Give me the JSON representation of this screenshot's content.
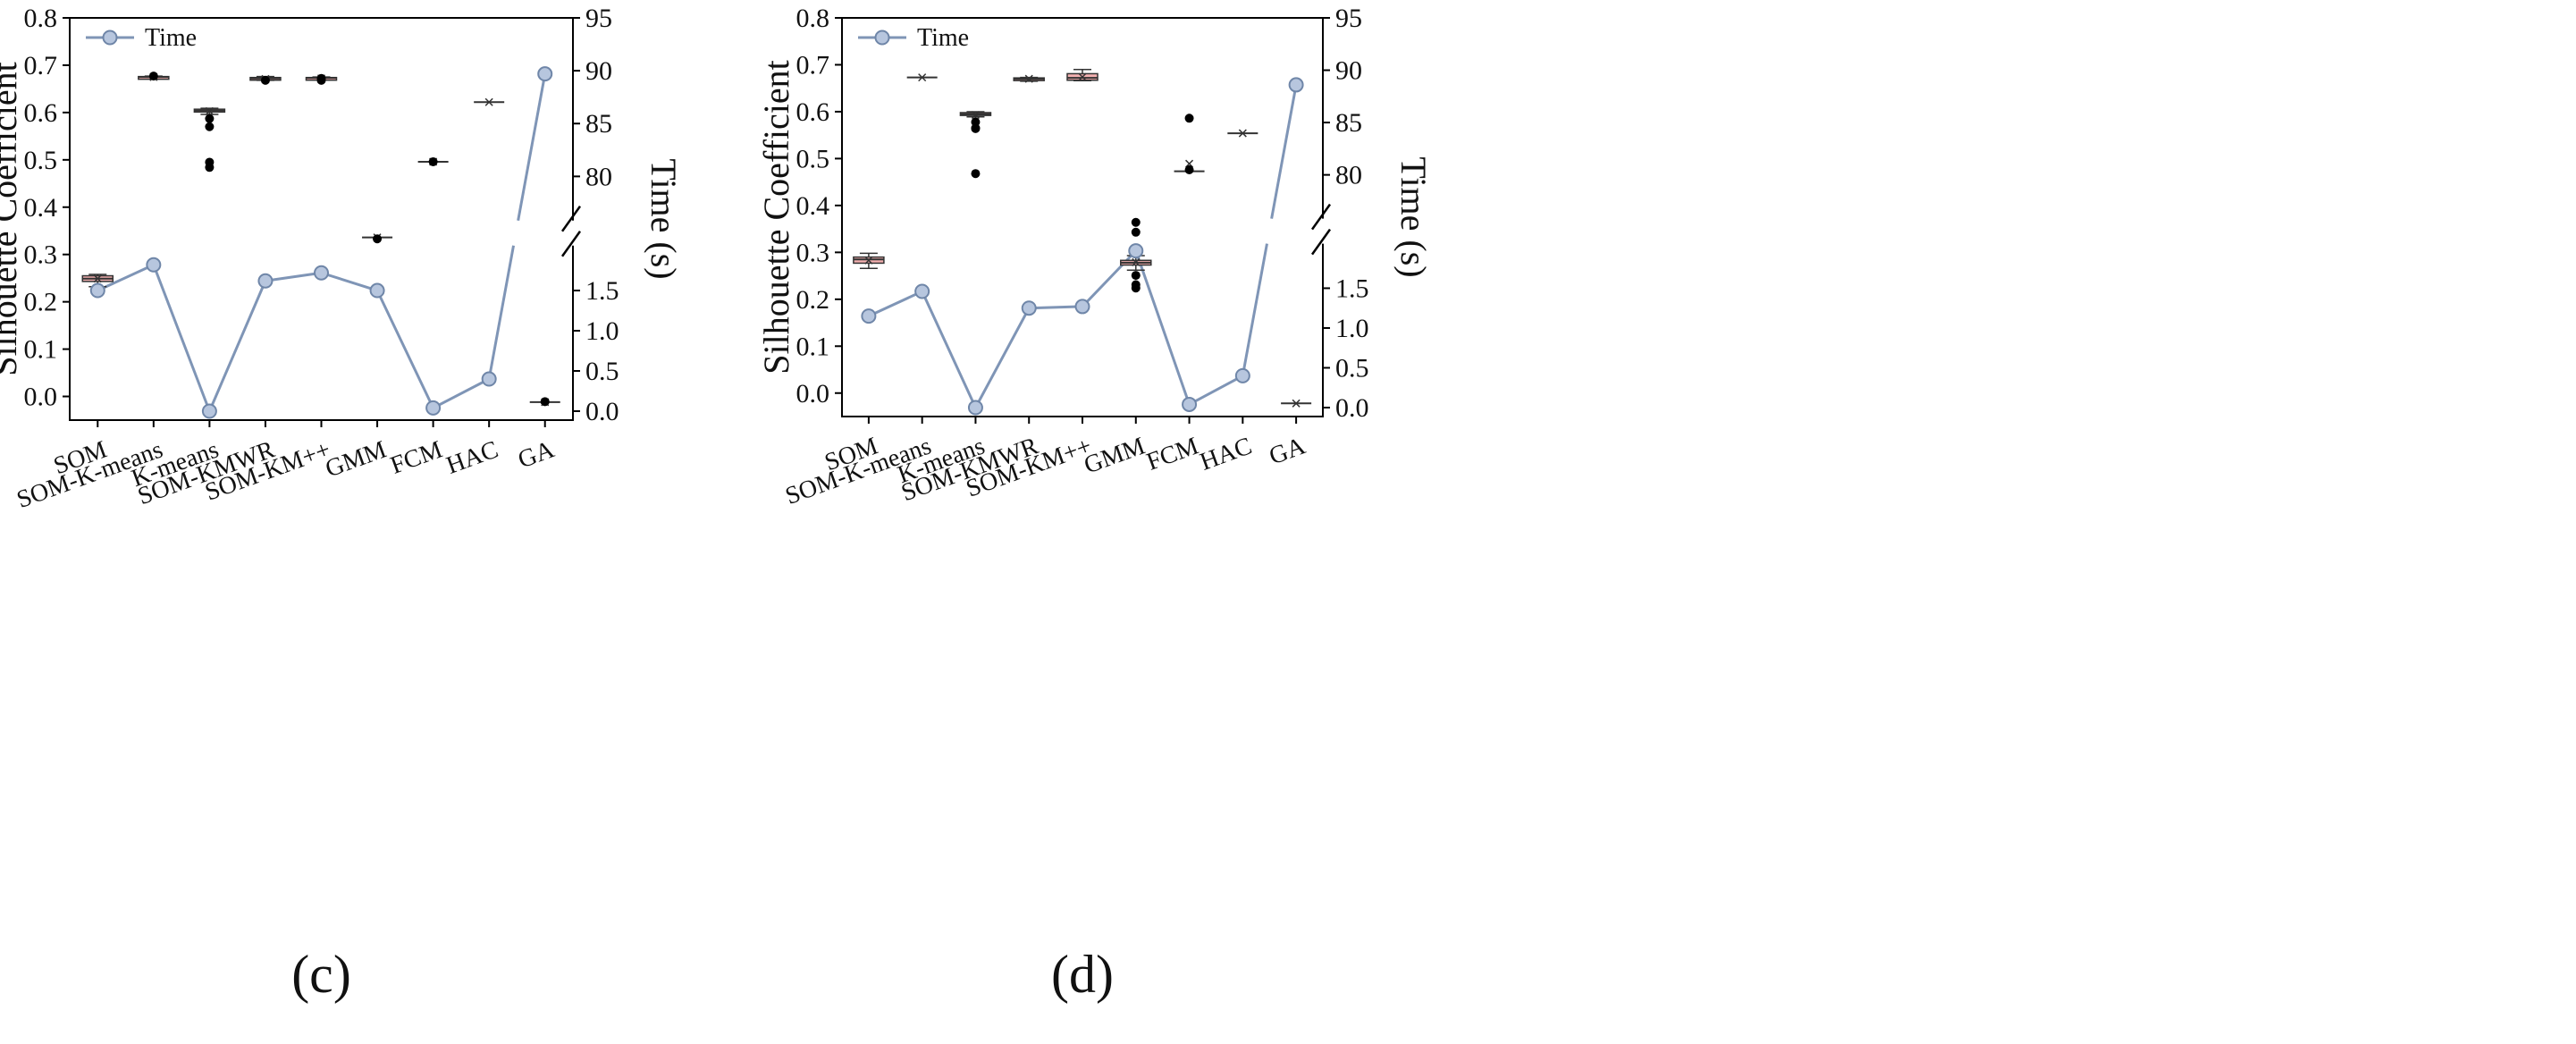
{
  "colors": {
    "time_line": "#7f95b6",
    "marker_fill": "#b7c6de",
    "marker_stroke": "#6f86a8",
    "box_fill": "#f3b0b0",
    "box_stroke": "#333333",
    "outlier": "#000000",
    "axis": "#000000"
  },
  "chart_data": [
    {
      "type": "box+line",
      "panel_label": "(c)",
      "ylabel": "Silhouette Coefficient",
      "y2label": "Time (s)",
      "ylim": [
        -0.05,
        0.8
      ],
      "yticks": [
        "0.8",
        "0.7",
        "0.6",
        "0.5",
        "0.4",
        "0.3",
        "0.2",
        "0.1",
        "0.0"
      ],
      "y2_lower_ticks": [
        "0.0",
        "0.5",
        "1.0",
        "1.5"
      ],
      "y2_upper_ticks": [
        "80",
        "85",
        "90",
        "95"
      ],
      "categories": [
        "SOM",
        "SOM-K-means",
        "K-means",
        "SOM-KMWR",
        "SOM-KM++",
        "GMM",
        "FCM",
        "HAC",
        "GA"
      ],
      "legend": "Time",
      "boxes": [
        {
          "q1": 0.243,
          "median": 0.249,
          "q3": 0.255,
          "whisker_low": 0.232,
          "whisker_high": 0.258,
          "mean": 0.249,
          "outliers": []
        },
        {
          "q1": 0.674,
          "median": 0.675,
          "q3": 0.676,
          "whisker_low": 0.674,
          "whisker_high": 0.677,
          "mean": 0.675,
          "outliers": [
            0.677
          ]
        },
        {
          "q1": 0.601,
          "median": 0.604,
          "q3": 0.607,
          "whisker_low": 0.596,
          "whisker_high": 0.609,
          "mean": 0.603,
          "outliers": [
            0.587,
            0.57,
            0.495,
            0.484
          ]
        },
        {
          "q1": 0.67,
          "median": 0.672,
          "q3": 0.674,
          "whisker_low": 0.668,
          "whisker_high": 0.676,
          "mean": 0.671,
          "outliers": [
            0.668
          ]
        },
        {
          "q1": 0.671,
          "median": 0.673,
          "q3": 0.674,
          "whisker_low": 0.669,
          "whisker_high": 0.675,
          "mean": 0.672,
          "outliers": [
            0.668,
            0.672
          ]
        },
        {
          "q1": 0.336,
          "median": 0.336,
          "q3": 0.336,
          "whisker_low": 0.336,
          "whisker_high": 0.336,
          "mean": 0.336,
          "outliers": [
            0.333
          ]
        },
        {
          "q1": 0.496,
          "median": 0.496,
          "q3": 0.496,
          "whisker_low": 0.496,
          "whisker_high": 0.496,
          "mean": 0.496,
          "outliers": [
            0.496
          ]
        },
        {
          "q1": 0.622,
          "median": 0.622,
          "q3": 0.622,
          "whisker_low": 0.622,
          "whisker_high": 0.622,
          "mean": 0.622,
          "outliers": []
        },
        {
          "q1": -0.012,
          "median": -0.012,
          "q3": -0.012,
          "whisker_low": -0.012,
          "whisker_high": -0.012,
          "mean": -0.012,
          "outliers": [
            -0.011
          ]
        }
      ],
      "time": [
        1.5,
        1.82,
        0.0,
        1.62,
        1.72,
        1.5,
        0.04,
        0.4,
        89.7
      ]
    },
    {
      "type": "box+line",
      "panel_label": "(d)",
      "ylabel": "Silhouette Coefficient",
      "y2label": "Time (s)",
      "ylim": [
        -0.05,
        0.8
      ],
      "yticks": [
        "0.8",
        "0.7",
        "0.6",
        "0.5",
        "0.4",
        "0.3",
        "0.2",
        "0.1",
        "0.0"
      ],
      "y2_lower_ticks": [
        "0.0",
        "0.5",
        "1.0",
        "1.5"
      ],
      "y2_upper_ticks": [
        "80",
        "85",
        "90",
        "95"
      ],
      "categories": [
        "SOM",
        "SOM-K-means",
        "K-means",
        "SOM-KMWR",
        "SOM-KM++",
        "GMM",
        "FCM",
        "HAC",
        "GA"
      ],
      "legend": "Time",
      "boxes": [
        {
          "q1": 0.277,
          "median": 0.285,
          "q3": 0.29,
          "whisker_low": 0.266,
          "whisker_high": 0.298,
          "mean": 0.283,
          "outliers": []
        },
        {
          "q1": 0.673,
          "median": 0.673,
          "q3": 0.673,
          "whisker_low": 0.673,
          "whisker_high": 0.673,
          "mean": 0.673,
          "outliers": []
        },
        {
          "q1": 0.592,
          "median": 0.595,
          "q3": 0.598,
          "whisker_low": 0.589,
          "whisker_high": 0.6,
          "mean": 0.593,
          "outliers": [
            0.578,
            0.565,
            0.564,
            0.468
          ]
        },
        {
          "q1": 0.668,
          "median": 0.67,
          "q3": 0.672,
          "whisker_low": 0.665,
          "whisker_high": 0.673,
          "mean": 0.67,
          "outliers": []
        },
        {
          "q1": 0.667,
          "median": 0.672,
          "q3": 0.681,
          "whisker_low": 0.666,
          "whisker_high": 0.69,
          "mean": 0.674,
          "outliers": []
        },
        {
          "q1": 0.273,
          "median": 0.278,
          "q3": 0.283,
          "whisker_low": 0.262,
          "whisker_high": 0.293,
          "mean": 0.279,
          "outliers": [
            0.364,
            0.343,
            0.251,
            0.231,
            0.224
          ]
        },
        {
          "q1": 0.473,
          "median": 0.473,
          "q3": 0.473,
          "whisker_low": 0.473,
          "whisker_high": 0.473,
          "mean": 0.489,
          "outliers": [
            0.586,
            0.476
          ]
        },
        {
          "q1": 0.554,
          "median": 0.554,
          "q3": 0.554,
          "whisker_low": 0.554,
          "whisker_high": 0.554,
          "mean": 0.554,
          "outliers": []
        },
        {
          "q1": -0.022,
          "median": -0.022,
          "q3": -0.022,
          "whisker_low": -0.022,
          "whisker_high": -0.022,
          "mean": -0.022,
          "outliers": []
        }
      ],
      "time": [
        1.15,
        1.46,
        0.0,
        1.25,
        1.27,
        1.97,
        0.04,
        0.4,
        88.6
      ]
    }
  ]
}
